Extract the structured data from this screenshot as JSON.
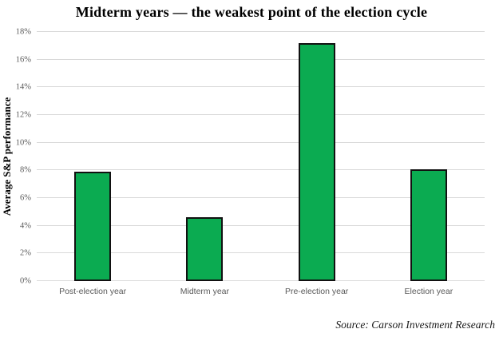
{
  "title": "Midterm years — the weakest point of the election cycle",
  "source_note": "Source: Carson Investment Research",
  "colors": {
    "bar_fill": "#0bab51",
    "bar_border": "#111111",
    "gridline": "#d9d9d9",
    "axis_label": "#595959",
    "text": "#000000"
  },
  "chart_data": {
    "type": "bar",
    "title": "Midterm years — the weakest point of the election cycle",
    "categories": [
      "Post-election year",
      "Midterm year",
      "Pre-election year",
      "Election year"
    ],
    "values": [
      7.9,
      4.6,
      17.2,
      8.1
    ],
    "xlabel": "",
    "ylabel": "Average S&P performance",
    "ylim": [
      0,
      18
    ],
    "ytick_interval": 2,
    "ytick_labels": [
      "0%",
      "2%",
      "4%",
      "6%",
      "8%",
      "10%",
      "12%",
      "14%",
      "16%",
      "18%"
    ],
    "grid": true,
    "legend": false,
    "source": "Source: Carson Investment Research"
  }
}
